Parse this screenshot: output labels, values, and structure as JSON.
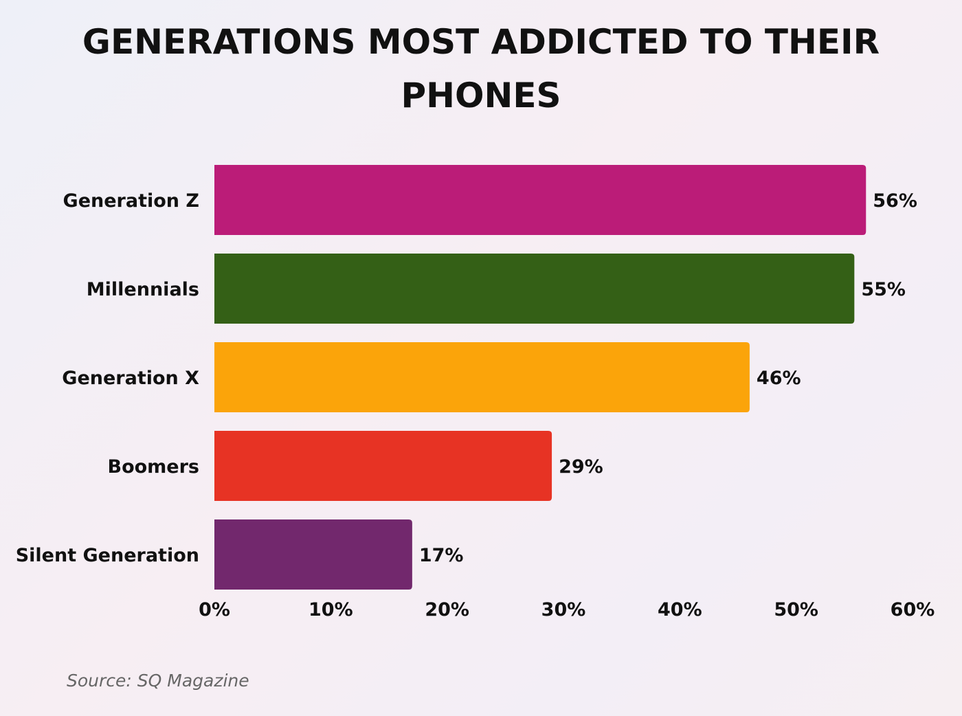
{
  "chart_data": {
    "type": "bar",
    "orientation": "horizontal",
    "title": "GENERATIONS MOST ADDICTED TO THEIR PHONES",
    "categories": [
      "Generation Z",
      "Millennials",
      "Generation X",
      "Boomers",
      "Silent Generation"
    ],
    "values": [
      56,
      55,
      46,
      29,
      17
    ],
    "value_labels": [
      "56%",
      "55%",
      "46%",
      "29%",
      "17%"
    ],
    "colors": [
      "#bb1c78",
      "#346016",
      "#fba40a",
      "#e73324",
      "#72286d"
    ],
    "xlim": [
      0,
      60
    ],
    "x_ticks": [
      0,
      10,
      20,
      30,
      40,
      50,
      60
    ],
    "x_tick_labels": [
      "0%",
      "10%",
      "20%",
      "30%",
      "40%",
      "50%",
      "60%"
    ],
    "grid": false,
    "legend": "none"
  },
  "source_note": "Source: SQ Magazine"
}
